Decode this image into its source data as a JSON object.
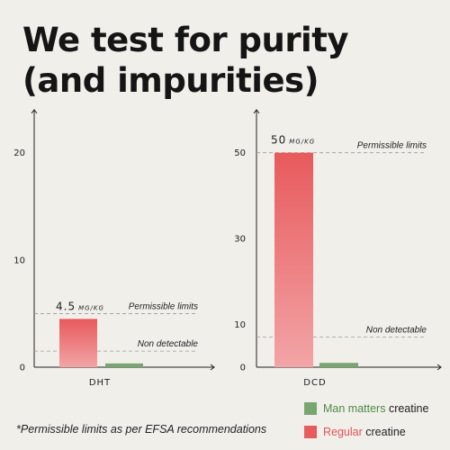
{
  "headline": {
    "line1": "We test for purity",
    "line2": "(and impurities)"
  },
  "colors": {
    "regular": "#e85a5c",
    "regular_light": "#f2a4a6",
    "man_matters": "#79a56f"
  },
  "chart_data": [
    {
      "type": "bar",
      "categories": [
        "DHT"
      ],
      "series": [
        {
          "name": "Regular creatine",
          "values": [
            4.5
          ]
        },
        {
          "name": "Man matters creatine",
          "values": [
            0.35
          ]
        }
      ],
      "yticks": [
        0,
        10,
        20
      ],
      "ylim": [
        0,
        24
      ],
      "value_label": {
        "number": "4.5",
        "unit": "MG/KG"
      },
      "annotations": [
        {
          "label": "Permissible limits",
          "value": 5
        },
        {
          "label": "Non detectable",
          "value": 1.5
        }
      ]
    },
    {
      "type": "bar",
      "categories": [
        "DCD"
      ],
      "series": [
        {
          "name": "Regular creatine",
          "values": [
            50
          ]
        },
        {
          "name": "Man matters creatine",
          "values": [
            1
          ]
        }
      ],
      "yticks": [
        0,
        10,
        30,
        50
      ],
      "ylim": [
        0,
        60
      ],
      "value_label": {
        "number": "50",
        "unit": "MG/KG"
      },
      "annotations": [
        {
          "label": "Permissible limits",
          "value": 50
        },
        {
          "label": "Non detectable",
          "value": 7
        }
      ]
    }
  ],
  "footnote": "*Permissible limits as per EFSA recommendations",
  "legend": [
    {
      "brand": "Man matters",
      "suffix": " creatine",
      "color": "#79a56f",
      "brand_color": "#4f8a46"
    },
    {
      "brand": "Regular",
      "suffix": " creatine",
      "color": "#e85a5c",
      "brand_color": "#e05355"
    }
  ]
}
